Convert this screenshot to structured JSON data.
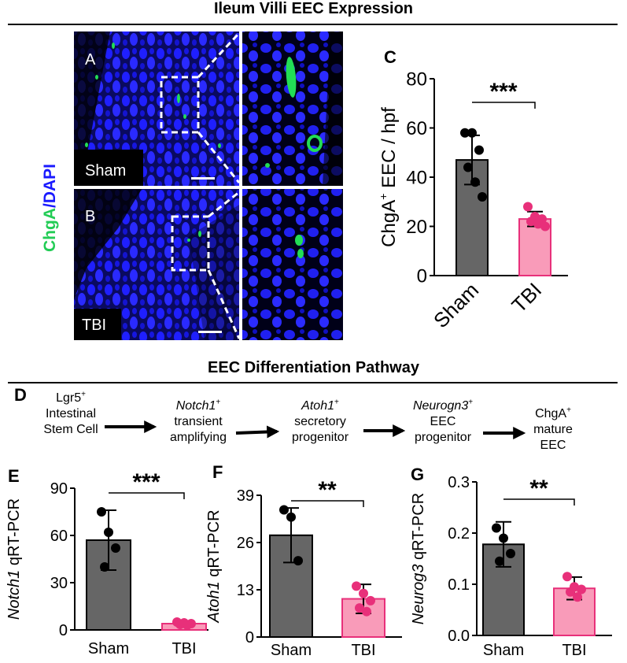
{
  "titles": {
    "top": "Ileum Villi EEC Expression",
    "middle": "EEC Differentiation Pathway"
  },
  "micrograph": {
    "stain_label_a": "ChgA",
    "stain_label_sep": "/",
    "stain_label_b": "DAPI",
    "panel_a": "A",
    "panel_b": "B",
    "sham": "Sham",
    "tbi": "TBI",
    "colors": {
      "dapi": "#1a1aff",
      "chga": "#22dd55",
      "bg": "#000000"
    }
  },
  "pathway": {
    "letter": "D",
    "steps": [
      {
        "gene": "Lgr5",
        "italic": false,
        "line2": "Intestinal",
        "line3": "Stem Cell"
      },
      {
        "gene": "Notch1",
        "italic": true,
        "line2": "transient",
        "line3": "amplifying"
      },
      {
        "gene": "Atoh1",
        "italic": true,
        "line2": "secretory",
        "line3": "progenitor"
      },
      {
        "gene": "Neurogn3",
        "italic": true,
        "line2": "EEC",
        "line3": "progenitor"
      },
      {
        "gene": "ChgA",
        "italic": false,
        "line2": "mature",
        "line3": "EEC"
      }
    ],
    "superscript": "+"
  },
  "colors": {
    "sham_bar": "#666666",
    "tbi_bar": "#f99bb9",
    "tbi_point": "#e8307a",
    "tbi_edge": "#e8307a"
  },
  "chart_data": [
    {
      "id": "C",
      "type": "bar",
      "letter": "C",
      "categories": [
        "Sham",
        "TBI"
      ],
      "values": [
        47,
        23
      ],
      "errors": [
        10,
        3
      ],
      "points": [
        [
          58,
          58,
          51,
          44,
          38,
          32
        ],
        [
          28,
          24,
          23,
          22,
          21,
          20
        ]
      ],
      "ylabel_main": "ChgA",
      "ylabel_sup": "+",
      "ylabel_rest": " EEC / hpf",
      "ylabel_italic": "",
      "ylim": [
        0,
        80
      ],
      "yticks": [
        "0",
        "20",
        "40",
        "60",
        "80"
      ],
      "significance": "***",
      "rotated_xticks": true
    },
    {
      "id": "E",
      "type": "bar",
      "letter": "E",
      "categories": [
        "Sham",
        "TBI"
      ],
      "values": [
        57,
        4
      ],
      "errors": [
        19,
        1
      ],
      "points": [
        [
          75,
          62,
          52,
          40
        ],
        [
          5,
          4.5,
          4,
          3.5,
          3
        ]
      ],
      "ylabel_italic": "Notch1",
      "ylabel_rest": " qRT-PCR",
      "ylim": [
        0,
        90
      ],
      "yticks": [
        "0",
        "30",
        "60",
        "90"
      ],
      "significance": "***",
      "rotated_xticks": false
    },
    {
      "id": "F",
      "type": "bar",
      "letter": "F",
      "categories": [
        "Sham",
        "TBI"
      ],
      "values": [
        28,
        10.5
      ],
      "errors": [
        7.5,
        4
      ],
      "points": [
        [
          35,
          33,
          21
        ],
        [
          14,
          12,
          10,
          8,
          7
        ]
      ],
      "ylabel_italic": "Atoh1",
      "ylabel_rest": " qRT-PCR",
      "ylim": [
        0,
        39
      ],
      "yticks": [
        "0",
        "13",
        "26",
        "39"
      ],
      "significance": "**",
      "rotated_xticks": false
    },
    {
      "id": "G",
      "type": "bar",
      "letter": "G",
      "categories": [
        "Sham",
        "TBI"
      ],
      "values": [
        0.178,
        0.092
      ],
      "errors": [
        0.044,
        0.022
      ],
      "points": [
        [
          0.21,
          0.19,
          0.16,
          0.145
        ],
        [
          0.115,
          0.095,
          0.09,
          0.085,
          0.075
        ]
      ],
      "ylabel_italic": "Neurog3",
      "ylabel_rest": " qRT-PCR",
      "ylim": [
        0,
        0.3
      ],
      "yticks": [
        "0.0",
        "0.1",
        "0.2",
        "0.3"
      ],
      "significance": "**",
      "rotated_xticks": false
    }
  ]
}
